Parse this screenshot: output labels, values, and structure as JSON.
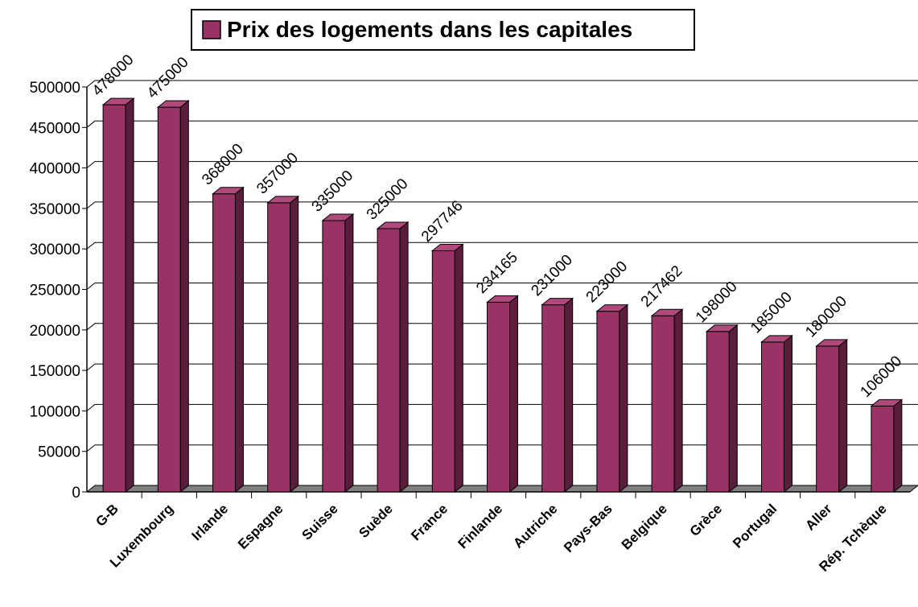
{
  "chart_data": {
    "type": "bar",
    "series": [
      {
        "name": "Prix des logements dans les capitales",
        "color": "#993366",
        "values": [
          478000,
          475000,
          368000,
          357000,
          335000,
          325000,
          297746,
          234165,
          231000,
          223000,
          217462,
          198000,
          185000,
          180000,
          106000
        ]
      }
    ],
    "categories": [
      "G-B",
      "Luxembourg",
      "Irlande",
      "Espagne",
      "Suisse",
      "Suède",
      "France",
      "Finlande",
      "Autriche",
      "Pays-Bas",
      "Belgique",
      "Grèce",
      "Portugal",
      "Aller",
      "Rép. Tchèque"
    ],
    "ylim": [
      0,
      500000
    ],
    "yticks": [
      0,
      50000,
      100000,
      150000,
      200000,
      250000,
      300000,
      350000,
      400000,
      450000,
      500000
    ],
    "grid": true,
    "legend": "top",
    "data_labels": true
  }
}
